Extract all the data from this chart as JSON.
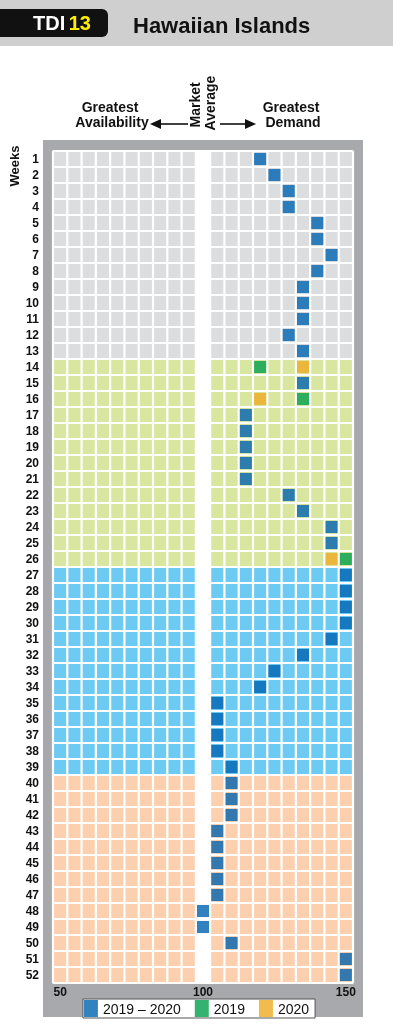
{
  "chart_data": {
    "type": "scatter",
    "title": "Hawaiian Islands",
    "subtitle": "TDI 13",
    "ylabel": "Weeks",
    "annotations": [
      "Greatest Availability",
      "Market Average",
      "Greatest Demand"
    ],
    "marker": "square",
    "grid": true,
    "legend": "bottom",
    "xlim": [
      47.5,
      152.5
    ],
    "xticks": [
      50,
      100,
      150
    ],
    "ylim": [
      52.5,
      0.5
    ],
    "yticks": [
      1,
      2,
      3,
      4,
      5,
      6,
      7,
      8,
      9,
      10,
      11,
      12,
      13,
      14,
      15,
      16,
      17,
      18,
      19,
      20,
      21,
      22,
      23,
      24,
      25,
      26,
      27,
      28,
      29,
      30,
      31,
      32,
      33,
      34,
      35,
      36,
      37,
      38,
      39,
      40,
      41,
      42,
      43,
      44,
      45,
      46,
      47,
      48,
      49,
      50,
      51,
      52
    ],
    "bands": [
      {
        "axis": "y",
        "from": 0.5,
        "to": 13.5,
        "color": "#dcdddf"
      },
      {
        "axis": "y",
        "from": 13.5,
        "to": 26.5,
        "color": "#d9e69f"
      },
      {
        "axis": "y",
        "from": 26.5,
        "to": 39.5,
        "color": "#6dcbf3"
      },
      {
        "axis": "y",
        "from": 39.5,
        "to": 52.5,
        "color": "#fcd0ae"
      },
      {
        "axis": "x",
        "from": 97.5,
        "to": 102.5,
        "color": "#ffffff"
      }
    ],
    "series": [
      {
        "name": "2019 – 2020",
        "color": "#0063b0",
        "x": [
          120,
          125,
          130,
          130,
          140,
          140,
          145,
          140,
          135,
          135,
          135,
          130,
          135,
          135,
          115,
          115,
          115,
          115,
          115,
          130,
          135,
          145,
          145,
          150,
          150,
          150,
          150,
          145,
          135,
          125,
          120,
          105,
          105,
          105,
          105,
          110,
          110,
          110,
          110,
          105,
          105,
          105,
          105,
          105,
          100,
          100,
          110,
          150,
          150
        ],
        "values": [
          1,
          2,
          3,
          4,
          5,
          6,
          7,
          8,
          9,
          10,
          11,
          12,
          13,
          15,
          17,
          18,
          19,
          20,
          21,
          22,
          23,
          24,
          25,
          27,
          28,
          29,
          30,
          31,
          32,
          33,
          34,
          35,
          36,
          37,
          38,
          39,
          40,
          41,
          42,
          43,
          44,
          45,
          46,
          47,
          48,
          49,
          50,
          51,
          52
        ]
      },
      {
        "name": "2019",
        "color": "#00a04b",
        "x": [
          120,
          135,
          150
        ],
        "values": [
          14,
          16,
          26
        ]
      },
      {
        "name": "2020",
        "color": "#eeaa22",
        "x": [
          135,
          120,
          145
        ],
        "values": [
          14,
          16,
          26
        ]
      }
    ]
  }
}
